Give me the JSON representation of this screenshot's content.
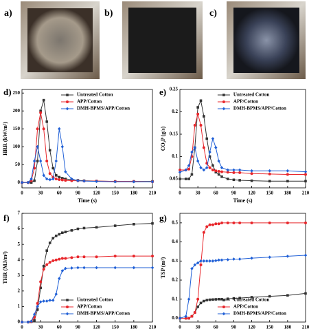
{
  "photos": {
    "labels": [
      "a)",
      "b)",
      "c)"
    ]
  },
  "chart_data": [
    {
      "type": "line",
      "label": "d)",
      "xlabel": "Time (s)",
      "ylabel": "HRR (kW/m²)",
      "legend": "upper right",
      "x": [
        0,
        10,
        15,
        20,
        25,
        30,
        35,
        40,
        45,
        50,
        55,
        60,
        65,
        70,
        80,
        90,
        100,
        120,
        150,
        180,
        210
      ],
      "xlim": [
        0,
        210
      ],
      "xticks": [
        0,
        30,
        60,
        90,
        120,
        150,
        180,
        210
      ],
      "ylim": [
        -15,
        260
      ],
      "yticks": [
        0,
        50,
        100,
        150,
        200,
        250
      ],
      "series": [
        {
          "name": "Untreated Cotton",
          "color": "#333333",
          "marker": "square",
          "values": [
            0,
            0,
            0,
            5,
            60,
            200,
            230,
            170,
            90,
            40,
            20,
            15,
            12,
            10,
            8,
            6,
            5,
            4,
            3,
            3,
            3
          ]
        },
        {
          "name": "APP/Cotton",
          "color": "#e8262b",
          "marker": "circle",
          "values": [
            0,
            0,
            5,
            40,
            150,
            195,
            150,
            60,
            25,
            15,
            10,
            8,
            7,
            6,
            5,
            5,
            4,
            4,
            3,
            3,
            2
          ]
        },
        {
          "name": "DMH-BPMS/APP/Cotton",
          "color": "#1f5fd6",
          "marker": "diamond",
          "values": [
            0,
            0,
            10,
            60,
            100,
            60,
            20,
            10,
            8,
            10,
            60,
            150,
            100,
            30,
            10,
            5,
            4,
            3,
            2,
            2,
            2
          ]
        }
      ]
    },
    {
      "type": "line",
      "label": "e)",
      "xlabel": "Time (s)",
      "ylabel": "CO₂P (g/s)",
      "legend": "upper right",
      "x": [
        0,
        10,
        15,
        20,
        25,
        30,
        35,
        40,
        45,
        50,
        55,
        60,
        65,
        70,
        80,
        90,
        100,
        120,
        150,
        180,
        210
      ],
      "xlim": [
        0,
        210
      ],
      "xticks": [
        0,
        30,
        60,
        90,
        120,
        150,
        180,
        210
      ],
      "ylim": [
        0.03,
        0.25
      ],
      "yticks": [
        0.05,
        0.1,
        0.15,
        0.2,
        0.25
      ],
      "series": [
        {
          "name": "Untreated Cotton",
          "color": "#333333",
          "marker": "square",
          "values": [
            0.05,
            0.05,
            0.05,
            0.06,
            0.12,
            0.21,
            0.225,
            0.19,
            0.14,
            0.1,
            0.08,
            0.065,
            0.06,
            0.055,
            0.05,
            0.048,
            0.047,
            0.046,
            0.045,
            0.045,
            0.045
          ]
        },
        {
          "name": "APP/Cotton",
          "color": "#e8262b",
          "marker": "circle",
          "values": [
            0.07,
            0.07,
            0.072,
            0.1,
            0.17,
            0.195,
            0.17,
            0.12,
            0.085,
            0.075,
            0.07,
            0.068,
            0.067,
            0.066,
            0.065,
            0.064,
            0.064,
            0.062,
            0.061,
            0.06,
            0.06
          ]
        },
        {
          "name": "DMH-BPMS/APP/Cotton",
          "color": "#1f5fd6",
          "marker": "diamond",
          "values": [
            0.065,
            0.07,
            0.08,
            0.11,
            0.12,
            0.09,
            0.075,
            0.07,
            0.075,
            0.11,
            0.14,
            0.12,
            0.09,
            0.075,
            0.07,
            0.07,
            0.07,
            0.068,
            0.068,
            0.068,
            0.066
          ]
        }
      ]
    },
    {
      "type": "line",
      "label": "f)",
      "xlabel": "Time (s)",
      "ylabel": "THR (MJ/m²)",
      "legend": "lower right",
      "x": [
        0,
        10,
        15,
        20,
        25,
        30,
        35,
        40,
        45,
        50,
        55,
        60,
        65,
        70,
        80,
        90,
        100,
        120,
        150,
        180,
        210
      ],
      "xlim": [
        0,
        210
      ],
      "xticks": [
        0,
        30,
        60,
        90,
        120,
        150,
        180,
        210
      ],
      "ylim": [
        0,
        7
      ],
      "yticks": [
        0,
        1,
        2,
        3,
        4,
        5,
        6,
        7
      ],
      "series": [
        {
          "name": "Untreated Cotton",
          "color": "#333333",
          "marker": "square",
          "values": [
            0,
            0,
            0.02,
            0.1,
            0.8,
            2.2,
            3.6,
            4.6,
            5.1,
            5.4,
            5.55,
            5.65,
            5.75,
            5.8,
            5.9,
            6.0,
            6.05,
            6.1,
            6.2,
            6.3,
            6.35
          ]
        },
        {
          "name": "APP/Cotton",
          "color": "#e8262b",
          "marker": "circle",
          "values": [
            0,
            0,
            0.03,
            0.3,
            1.2,
            2.6,
            3.4,
            3.7,
            3.85,
            3.95,
            4.0,
            4.05,
            4.1,
            4.1,
            4.15,
            4.2,
            4.2,
            4.2,
            4.25,
            4.25,
            4.25
          ]
        },
        {
          "name": "DMH-BPMS/APP/Cotton",
          "color": "#1f5fd6",
          "marker": "diamond",
          "values": [
            0,
            0,
            0.05,
            0.5,
            1.0,
            1.3,
            1.35,
            1.35,
            1.4,
            1.4,
            1.8,
            2.8,
            3.3,
            3.45,
            3.48,
            3.5,
            3.5,
            3.5,
            3.5,
            3.5,
            3.5
          ]
        }
      ]
    },
    {
      "type": "line",
      "label": "g)",
      "xlabel": "Time (s)",
      "ylabel": "TSP (m²)",
      "legend": "lower right",
      "x": [
        0,
        10,
        15,
        20,
        25,
        30,
        35,
        40,
        45,
        50,
        55,
        60,
        65,
        70,
        80,
        90,
        100,
        120,
        150,
        180,
        210
      ],
      "xlim": [
        0,
        210
      ],
      "xticks": [
        0,
        30,
        60,
        90,
        120,
        150,
        180,
        210
      ],
      "ylim": [
        -0.02,
        0.55
      ],
      "yticks": [
        {
          "value": 0,
          "label": "0.0"
        },
        0.1,
        0.2,
        0.3,
        0.4,
        0.5
      ],
      "series": [
        {
          "name": "Untreated Cotton",
          "color": "#333333",
          "marker": "square",
          "values": [
            0,
            0,
            0,
            0.01,
            0.03,
            0.06,
            0.08,
            0.09,
            0.095,
            0.097,
            0.098,
            0.099,
            0.1,
            0.1,
            0.102,
            0.104,
            0.106,
            0.11,
            0.115,
            0.12,
            0.13
          ]
        },
        {
          "name": "APP/Cotton",
          "color": "#e8262b",
          "marker": "circle",
          "values": [
            0,
            0,
            0,
            0.01,
            0.03,
            0.1,
            0.28,
            0.45,
            0.48,
            0.49,
            0.49,
            0.495,
            0.495,
            0.5,
            0.5,
            0.5,
            0.5,
            0.5,
            0.5,
            0.5,
            0.5
          ]
        },
        {
          "name": "DMH-BPMS/APP/Cotton",
          "color": "#1f5fd6",
          "marker": "diamond",
          "values": [
            0,
            0.01,
            0.1,
            0.26,
            0.28,
            0.29,
            0.3,
            0.3,
            0.3,
            0.3,
            0.3,
            0.302,
            0.305,
            0.305,
            0.307,
            0.31,
            0.31,
            0.315,
            0.32,
            0.325,
            0.33
          ]
        }
      ]
    }
  ]
}
